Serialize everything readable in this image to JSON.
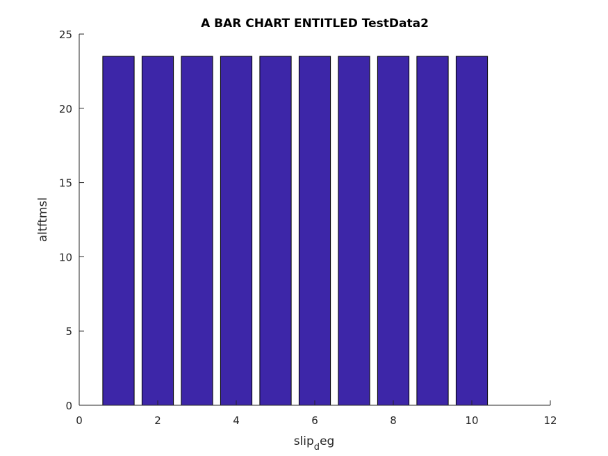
{
  "chart_data": {
    "type": "bar",
    "title": "A BAR CHART ENTITLED TestData2",
    "xlabel": {
      "main": "slip",
      "subscript": "d",
      "suffix": "eg"
    },
    "ylabel": "altftmsl",
    "x": [
      1,
      2,
      3,
      4,
      5,
      6,
      7,
      8,
      9,
      10
    ],
    "values": [
      23.5,
      23.5,
      23.5,
      23.5,
      23.5,
      23.5,
      23.5,
      23.5,
      23.5,
      23.5
    ],
    "xlim": [
      0,
      12
    ],
    "ylim": [
      0,
      25
    ],
    "xticks": [
      "0",
      "2",
      "4",
      "6",
      "8",
      "10",
      "12"
    ],
    "yticks": [
      "0",
      "5",
      "10",
      "15",
      "20",
      "25"
    ],
    "bar_color": "#3d26a8",
    "grid": false
  }
}
